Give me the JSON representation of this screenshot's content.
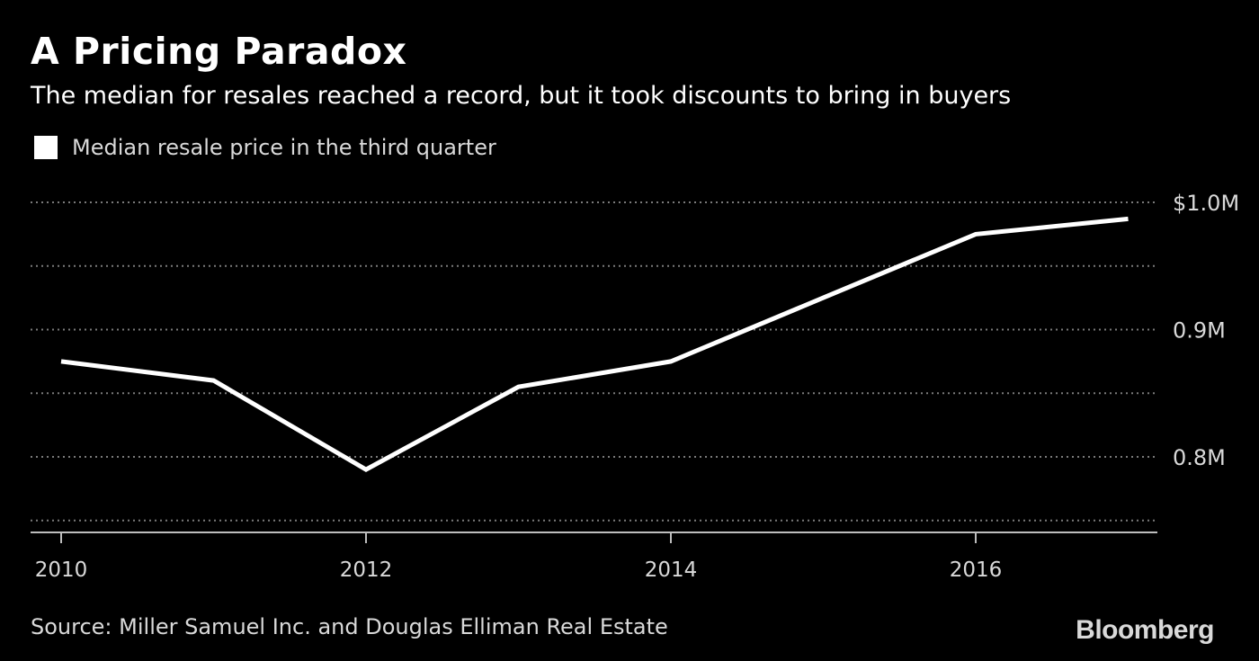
{
  "header": {
    "title": "A Pricing Paradox",
    "subtitle": "The median for resales reached a record, but it took discounts to bring in buyers"
  },
  "footer": {
    "source": "Source: Miller Samuel Inc. and Douglas Elliman Real Estate",
    "brand": "Bloomberg"
  },
  "colors": {
    "background": "#000000",
    "line": "#ffffff",
    "grid": "#7a7a7a",
    "axis": "#bdbdbd",
    "text": "#ffffff",
    "muted_text": "#d9d9d9"
  },
  "chart_data": {
    "type": "line",
    "title": "A Pricing Paradox",
    "subtitle": "The median for resales reached a record, but it took discounts to bring in buyers",
    "xlabel": "",
    "ylabel": "",
    "x": [
      2010,
      2011,
      2012,
      2013,
      2014,
      2015,
      2016,
      2017
    ],
    "series": [
      {
        "name": "Median resale price in the third quarter",
        "values": [
          875000,
          860000,
          790000,
          855000,
          875000,
          925000,
          975000,
          987000
        ]
      }
    ],
    "xlim": [
      2010,
      2017.2
    ],
    "ylim": [
      750000,
      1000000
    ],
    "x_ticks": [
      2010,
      2012,
      2014,
      2016
    ],
    "x_tick_labels": [
      "2010",
      "2012",
      "2014",
      "2016"
    ],
    "y_gridlines": [
      750000,
      800000,
      850000,
      900000,
      950000,
      1000000
    ],
    "y_ticks": [
      800000,
      900000,
      1000000
    ],
    "y_tick_labels": [
      "0.8M",
      "0.9M",
      "$1.0M"
    ],
    "y_axis_side": "right",
    "grid": true,
    "grid_style": "dotted",
    "legend_position": "top-left"
  }
}
